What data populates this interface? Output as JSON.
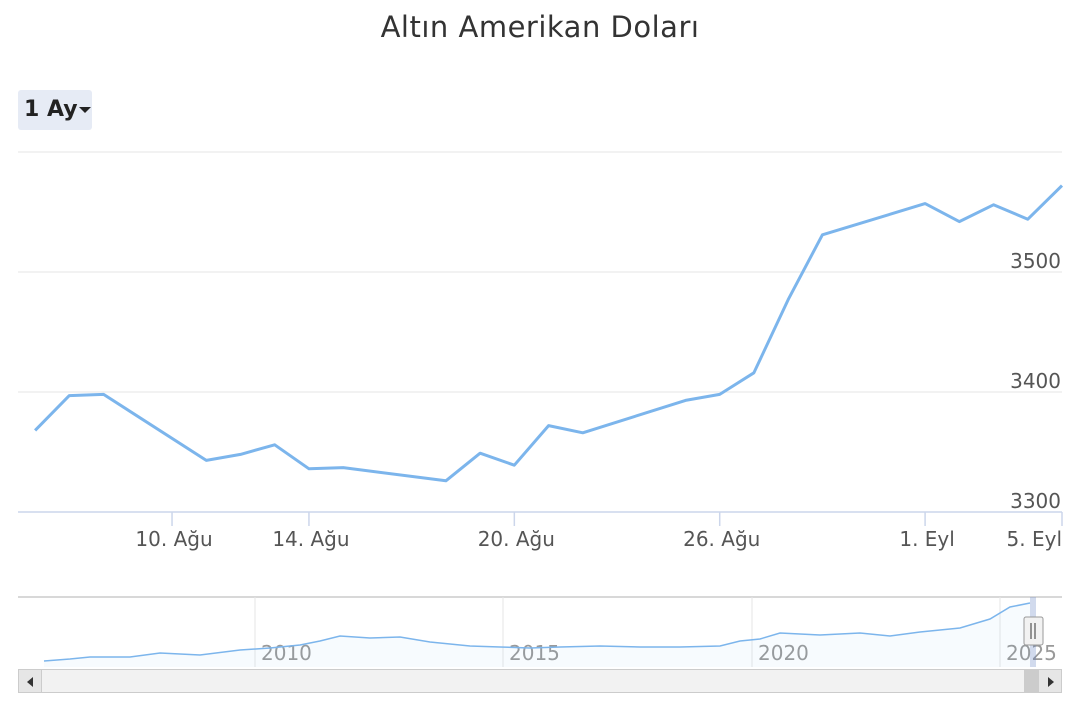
{
  "chart_data": {
    "type": "line",
    "title": "Altın Amerikan Doları",
    "range_selector_label": "1 Ay",
    "x": [
      "2025-08-06",
      "2025-08-07",
      "2025-08-08",
      "2025-08-11",
      "2025-08-12",
      "2025-08-13",
      "2025-08-14",
      "2025-08-15",
      "2025-08-18",
      "2025-08-19",
      "2025-08-20",
      "2025-08-21",
      "2025-08-22",
      "2025-08-25",
      "2025-08-26",
      "2025-08-27",
      "2025-08-28",
      "2025-08-29",
      "2025-09-01",
      "2025-09-02",
      "2025-09-03",
      "2025-09-04",
      "2025-09-05"
    ],
    "series": [
      {
        "name": "",
        "color": "#7cb5ec",
        "values": [
          3368,
          3397,
          3398,
          3343,
          3348,
          3356,
          3336,
          3337,
          3326,
          3349,
          3339,
          3372,
          3366,
          3393,
          3398,
          3416,
          3477,
          3531,
          3557,
          3542,
          3556,
          3544,
          3572
        ]
      }
    ],
    "x_tick_labels": [
      "10. Ağu",
      "14. Ağu",
      "20. Ağu",
      "26. Ağu",
      "1. Eyl",
      "5. Eyl"
    ],
    "y_tick_labels": [
      "3300",
      "3400",
      "3500"
    ],
    "ylim": [
      3300,
      3600
    ],
    "grid": true,
    "navigator": {
      "x_tick_labels": [
        "2010",
        "2015",
        "2020",
        "2025"
      ],
      "series_color": "#7cb5ec"
    }
  }
}
